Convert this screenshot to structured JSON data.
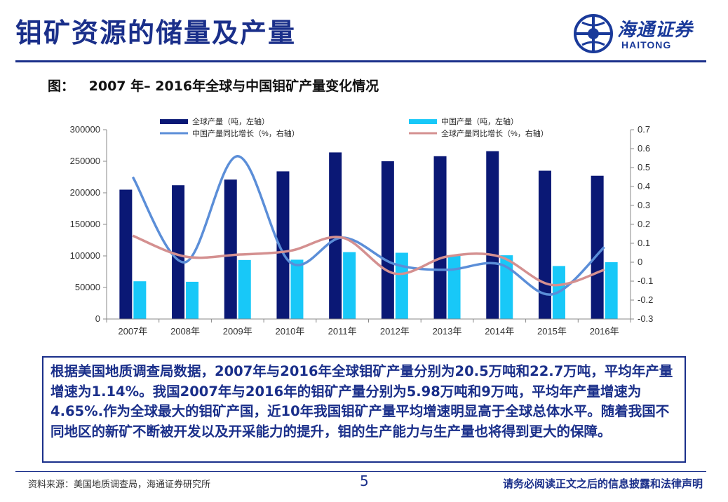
{
  "slide": {
    "title": "钼矿资源的储量及产量",
    "logo": {
      "name_cn": "海通证券",
      "name_en": "HAITONG"
    },
    "figure_label": "图：",
    "figure_title": "2007 年– 2016年全球与中国钼矿产量变化情况",
    "note": "根据美国地质调查局数据，2007年与2016年全球钼矿产量分别为20.5万吨和22.7万吨，平均年产量增速为1.14%。我国2007年与2016年的钼矿产量分别为5.98万吨和9万吨，平均年产量增速为4.65%.作为全球最大的钼矿产国，近10年我国钼矿产量平均增速明显高于全球总体水平。随着我国不同地区的新矿不断被开发以及开采能力的提升，钼的生产能力与生产量也将得到更大的保障。",
    "source": "资料来源：美国地质调查局，海通证券研究所",
    "page_number": "5",
    "disclaimer": "请务必阅读正文之后的信息披露和法律声明"
  },
  "colors": {
    "navy": "#1a2f8a",
    "global_bar": "#0a1875",
    "china_bar": "#18c8f8",
    "china_growth_line": "#5b8ed8",
    "global_growth_line": "#d49090"
  },
  "chart_data": {
    "type": "bar+line",
    "categories": [
      "2007年",
      "2008年",
      "2009年",
      "2010年",
      "2011年",
      "2012年",
      "2013年",
      "2014年",
      "2015年",
      "2016年"
    ],
    "series": [
      {
        "name": "全球产量（吨，左轴）",
        "type": "bar",
        "axis": "left",
        "values": [
          205000,
          212000,
          221000,
          234000,
          264000,
          250000,
          258000,
          266000,
          235000,
          227000
        ]
      },
      {
        "name": "中国产量（吨，左轴）",
        "type": "bar",
        "axis": "left",
        "values": [
          59800,
          59000,
          93500,
          94000,
          106000,
          105000,
          101000,
          101000,
          84000,
          90000
        ]
      },
      {
        "name": "中国产量同比增长（%，右轴）",
        "type": "line",
        "axis": "right",
        "values": [
          0.45,
          0.0,
          0.56,
          0.0,
          0.13,
          -0.01,
          -0.04,
          -0.01,
          -0.17,
          0.08
        ]
      },
      {
        "name": "全球产量同比增长（%，右轴）",
        "type": "line",
        "axis": "right",
        "values": [
          0.14,
          0.03,
          0.04,
          0.06,
          0.13,
          -0.06,
          0.03,
          0.03,
          -0.12,
          -0.04
        ]
      }
    ],
    "y_left": {
      "min": 0,
      "max": 300000,
      "ticks": [
        "0",
        "50000",
        "100000",
        "150000",
        "200000",
        "250000",
        "300000"
      ]
    },
    "y_right": {
      "min": -0.3,
      "max": 0.7,
      "ticks": [
        "-0.3",
        "-0.2",
        "-0.1",
        "0",
        "0.1",
        "0.2",
        "0.3",
        "0.4",
        "0.5",
        "0.6",
        "0.7"
      ]
    },
    "legend_position": "top"
  }
}
